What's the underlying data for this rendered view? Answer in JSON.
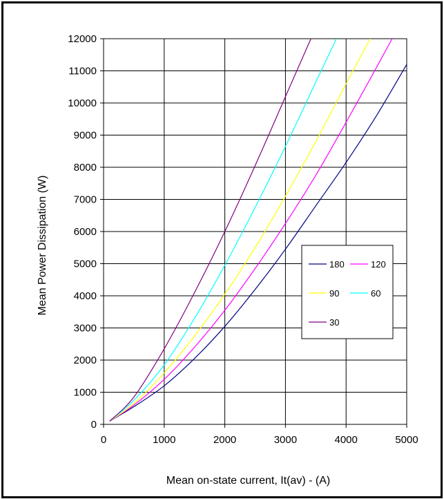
{
  "chart_data": {
    "type": "line",
    "xlabel": "Mean on-state current, It(av) - (A)",
    "ylabel": "Mean Power Dissipation (W)",
    "xlim": [
      0,
      5000
    ],
    "ylim": [
      0,
      12000
    ],
    "xticks": [
      "0",
      "1000",
      "2000",
      "3000",
      "4000",
      "5000"
    ],
    "yticks": [
      "0",
      "1000",
      "2000",
      "3000",
      "4000",
      "5000",
      "6000",
      "7000",
      "8000",
      "9000",
      "10000",
      "11000",
      "12000"
    ],
    "grid": true,
    "legend_position": "right-middle",
    "series": [
      {
        "name": "180",
        "color": "#000080",
        "x": [
          100,
          500,
          1000,
          1500,
          2000,
          2500,
          3000,
          3500,
          4000,
          4500,
          5000
        ],
        "y": [
          100,
          550,
          1200,
          2050,
          3050,
          4200,
          5450,
          6800,
          8150,
          9600,
          11200
        ]
      },
      {
        "name": "120",
        "color": "#ff00ff",
        "x": [
          100,
          500,
          1000,
          1500,
          2000,
          2500,
          3000,
          3500,
          4000,
          4500,
          4760
        ],
        "y": [
          100,
          600,
          1400,
          2400,
          3550,
          4850,
          6250,
          7750,
          9400,
          11100,
          12000
        ]
      },
      {
        "name": "90",
        "color": "#ffff00",
        "x": [
          100,
          500,
          1000,
          1500,
          2000,
          2500,
          3000,
          3500,
          4000,
          4400
        ],
        "y": [
          100,
          650,
          1600,
          2750,
          4050,
          5500,
          7100,
          8800,
          10600,
          12000
        ]
      },
      {
        "name": "60",
        "color": "#00ffff",
        "x": [
          100,
          500,
          1000,
          1500,
          2000,
          2500,
          3000,
          3500,
          3840
        ],
        "y": [
          100,
          750,
          1850,
          3300,
          4950,
          6750,
          8650,
          10650,
          12000
        ]
      },
      {
        "name": "30",
        "color": "#800080",
        "x": [
          100,
          500,
          1000,
          1500,
          2000,
          2500,
          3000,
          3420
        ],
        "y": [
          100,
          850,
          2350,
          4100,
          6000,
          8050,
          10200,
          12000
        ]
      }
    ]
  }
}
